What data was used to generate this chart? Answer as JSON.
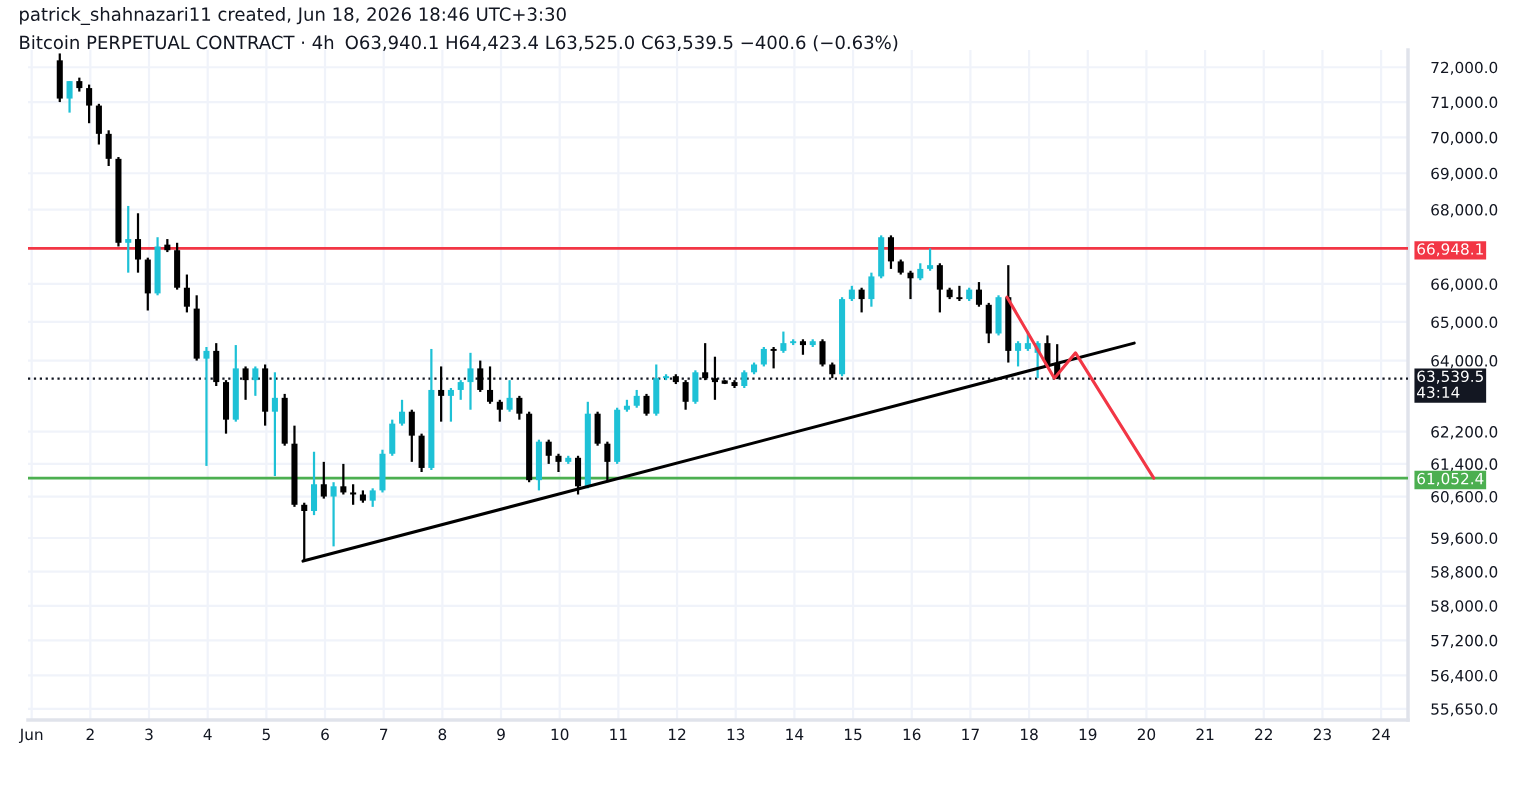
{
  "chart_data": {
    "type": "candlestick",
    "title": "Bitcoin PERPETUAL CONTRACT · 4h",
    "subtitle": "O63,940.1 H64,423.4 L63,525.0 C63,539.5 −400.6 (−0.63%)",
    "annotations": [
      "patrick_shahnazari11 created, Jun 18, 2026 18:46 UTC+3:30"
    ],
    "x": [
      "2026-06-01T11:30",
      "2026-06-01T15:30",
      "2026-06-01T19:30",
      "2026-06-01T23:30",
      "2026-06-02T03:30",
      "2026-06-02T07:30",
      "2026-06-02T11:30",
      "2026-06-02T15:30",
      "2026-06-02T19:30",
      "2026-06-02T23:30",
      "2026-06-03T03:30",
      "2026-06-03T07:30",
      "2026-06-03T11:30",
      "2026-06-03T15:30",
      "2026-06-03T19:30",
      "2026-06-03T23:30",
      "2026-06-04T03:30",
      "2026-06-04T07:30",
      "2026-06-04T11:30",
      "2026-06-04T15:30",
      "2026-06-04T19:30",
      "2026-06-04T23:30",
      "2026-06-05T03:30",
      "2026-06-05T07:30",
      "2026-06-05T11:30",
      "2026-06-05T15:30",
      "2026-06-05T19:30",
      "2026-06-05T23:30",
      "2026-06-06T03:30",
      "2026-06-06T07:30",
      "2026-06-06T11:30",
      "2026-06-06T15:30",
      "2026-06-06T19:30",
      "2026-06-06T23:30",
      "2026-06-07T03:30",
      "2026-06-07T07:30",
      "2026-06-07T11:30",
      "2026-06-07T15:30",
      "2026-06-07T19:30",
      "2026-06-07T23:30",
      "2026-06-08T03:30",
      "2026-06-08T07:30",
      "2026-06-08T11:30",
      "2026-06-08T15:30",
      "2026-06-08T19:30",
      "2026-06-08T23:30",
      "2026-06-09T03:30",
      "2026-06-09T07:30",
      "2026-06-09T11:30",
      "2026-06-09T15:30",
      "2026-06-09T19:30",
      "2026-06-09T23:30",
      "2026-06-10T03:30",
      "2026-06-10T07:30",
      "2026-06-10T11:30",
      "2026-06-10T15:30",
      "2026-06-10T19:30",
      "2026-06-10T23:30",
      "2026-06-11T03:30",
      "2026-06-11T07:30",
      "2026-06-11T11:30",
      "2026-06-11T15:30",
      "2026-06-11T19:30",
      "2026-06-11T23:30",
      "2026-06-12T03:30",
      "2026-06-12T07:30",
      "2026-06-12T11:30",
      "2026-06-12T15:30",
      "2026-06-12T19:30",
      "2026-06-12T23:30",
      "2026-06-13T03:30",
      "2026-06-13T07:30",
      "2026-06-13T11:30",
      "2026-06-13T15:30",
      "2026-06-13T19:30",
      "2026-06-13T23:30",
      "2026-06-14T03:30",
      "2026-06-14T07:30",
      "2026-06-14T11:30",
      "2026-06-14T15:30",
      "2026-06-14T19:30",
      "2026-06-14T23:30",
      "2026-06-15T03:30",
      "2026-06-15T07:30",
      "2026-06-15T11:30",
      "2026-06-15T15:30",
      "2026-06-15T19:30",
      "2026-06-15T23:30",
      "2026-06-16T03:30",
      "2026-06-16T07:30",
      "2026-06-16T11:30",
      "2026-06-16T15:30",
      "2026-06-16T19:30",
      "2026-06-16T23:30",
      "2026-06-17T03:30",
      "2026-06-17T07:30",
      "2026-06-17T11:30",
      "2026-06-17T15:30",
      "2026-06-17T19:30",
      "2026-06-17T23:30",
      "2026-06-18T03:30",
      "2026-06-18T07:30",
      "2026-06-18T11:30"
    ],
    "ohlc": [
      [
        72200,
        72400,
        71000,
        71100
      ],
      [
        71100,
        71600,
        70700,
        71600
      ],
      [
        71600,
        71700,
        71300,
        71400
      ],
      [
        71400,
        71500,
        70400,
        70900
      ],
      [
        70900,
        70950,
        69800,
        70100
      ],
      [
        70100,
        70200,
        69200,
        69400
      ],
      [
        69400,
        69450,
        67000,
        67100
      ],
      [
        67100,
        68100,
        66300,
        67200
      ],
      [
        67200,
        67900,
        66300,
        66650
      ],
      [
        66650,
        66700,
        65300,
        65750
      ],
      [
        65750,
        67250,
        65700,
        67000
      ],
      [
        67050,
        67200,
        66850,
        66900
      ],
      [
        66900,
        67100,
        65850,
        65900
      ],
      [
        65900,
        66250,
        65250,
        65400
      ],
      [
        65350,
        65700,
        64000,
        64050
      ],
      [
        64050,
        64350,
        61350,
        64250
      ],
      [
        64250,
        64450,
        63350,
        63450
      ],
      [
        63450,
        63500,
        62150,
        62500
      ],
      [
        62500,
        64400,
        62450,
        63800
      ],
      [
        63800,
        63850,
        63000,
        63500
      ],
      [
        63500,
        63850,
        63100,
        63800
      ],
      [
        63800,
        63900,
        62350,
        62700
      ],
      [
        62700,
        63700,
        61100,
        63050
      ],
      [
        63050,
        63150,
        61850,
        61900
      ],
      [
        61900,
        62350,
        60350,
        60400
      ],
      [
        60400,
        60450,
        59050,
        60250
      ],
      [
        60250,
        61700,
        60150,
        60900
      ],
      [
        60900,
        61450,
        60550,
        60600
      ],
      [
        60600,
        60950,
        59400,
        60850
      ],
      [
        60850,
        61400,
        60650,
        60700
      ],
      [
        60700,
        60900,
        60400,
        60650
      ],
      [
        60650,
        60750,
        60450,
        60500
      ],
      [
        60500,
        60800,
        60350,
        60750
      ],
      [
        60750,
        61750,
        60700,
        61650
      ],
      [
        61650,
        62500,
        61600,
        62400
      ],
      [
        62400,
        63000,
        62350,
        62700
      ],
      [
        62700,
        62750,
        61450,
        62100
      ],
      [
        62100,
        62150,
        61200,
        61300
      ],
      [
        61300,
        64300,
        61250,
        63250
      ],
      [
        63250,
        63850,
        62450,
        63100
      ],
      [
        63100,
        63300,
        62450,
        63250
      ],
      [
        63250,
        63500,
        63000,
        63450
      ],
      [
        63450,
        64200,
        62750,
        63800
      ],
      [
        63800,
        64000,
        63200,
        63250
      ],
      [
        63250,
        63850,
        62900,
        62950
      ],
      [
        62950,
        63000,
        62450,
        62750
      ],
      [
        62750,
        63500,
        62700,
        63050
      ],
      [
        63050,
        63100,
        62500,
        62650
      ],
      [
        62650,
        62700,
        60950,
        61000
      ],
      [
        61000,
        62000,
        60750,
        61950
      ],
      [
        61950,
        62000,
        61400,
        61600
      ],
      [
        61600,
        61650,
        61200,
        61450
      ],
      [
        61450,
        61600,
        61400,
        61550
      ],
      [
        61550,
        61600,
        60650,
        60850
      ],
      [
        60850,
        62950,
        60800,
        62650
      ],
      [
        62650,
        62700,
        61850,
        61900
      ],
      [
        61900,
        61950,
        60950,
        61450
      ],
      [
        61450,
        62800,
        61400,
        62750
      ],
      [
        62750,
        63000,
        62700,
        62850
      ],
      [
        62850,
        63250,
        62800,
        63100
      ],
      [
        63100,
        63150,
        62600,
        62650
      ],
      [
        62650,
        63900,
        62600,
        63550
      ],
      [
        63550,
        63650,
        63500,
        63600
      ],
      [
        63600,
        63650,
        63400,
        63450
      ],
      [
        63450,
        63500,
        62750,
        62950
      ],
      [
        62950,
        63750,
        62900,
        63700
      ],
      [
        63700,
        64450,
        63500,
        63550
      ],
      [
        63550,
        64100,
        63000,
        63450
      ],
      [
        63450,
        63500,
        63400,
        63450
      ],
      [
        63450,
        63500,
        63300,
        63350
      ],
      [
        63350,
        63750,
        63300,
        63700
      ],
      [
        63700,
        63950,
        63650,
        63900
      ],
      [
        63900,
        64350,
        63850,
        64300
      ],
      [
        64300,
        64350,
        63800,
        64250
      ],
      [
        64250,
        64750,
        64200,
        64450
      ],
      [
        64450,
        64550,
        64400,
        64500
      ],
      [
        64500,
        64550,
        64150,
        64400
      ],
      [
        64400,
        64550,
        64350,
        64500
      ],
      [
        64500,
        64550,
        63850,
        63900
      ],
      [
        63900,
        63950,
        63550,
        63650
      ],
      [
        63650,
        65650,
        63600,
        65600
      ],
      [
        65600,
        65950,
        65550,
        65850
      ],
      [
        65850,
        65900,
        65250,
        65600
      ],
      [
        65600,
        66300,
        65400,
        66200
      ],
      [
        66200,
        67300,
        66150,
        67250
      ],
      [
        67250,
        67300,
        66400,
        66600
      ],
      [
        66600,
        66650,
        66250,
        66300
      ],
      [
        66300,
        66350,
        65600,
        66150
      ],
      [
        66150,
        66550,
        66100,
        66400
      ],
      [
        66400,
        66950,
        66350,
        66500
      ],
      [
        66500,
        66550,
        65250,
        65850
      ],
      [
        65850,
        65900,
        65600,
        65650
      ],
      [
        65650,
        65950,
        65550,
        65600
      ],
      [
        65600,
        65900,
        65550,
        65850
      ],
      [
        65850,
        66050,
        65400,
        65450
      ],
      [
        65450,
        65500,
        64450,
        64700
      ],
      [
        64700,
        65700,
        64650,
        65650
      ],
      [
        65650,
        66500,
        63950,
        64250
      ],
      [
        64250,
        64500,
        63850,
        64450
      ],
      [
        64300,
        64750,
        64250,
        64450
      ],
      [
        64200,
        64500,
        63550,
        64450
      ],
      [
        64450,
        64650,
        63850,
        63900
      ],
      [
        63940.1,
        64423.4,
        63525.0,
        63539.5
      ]
    ],
    "colors": [
      "#000000",
      "#1ec1d6",
      "#000000",
      "#000000",
      "#000000",
      "#000000",
      "#000000",
      "#1ec1d6",
      "#000000",
      "#000000",
      "#1ec1d6",
      "#000000",
      "#000000",
      "#000000",
      "#000000",
      "#1ec1d6",
      "#000000",
      "#000000",
      "#1ec1d6",
      "#000000",
      "#1ec1d6",
      "#000000",
      "#1ec1d6",
      "#000000",
      "#000000",
      "#000000",
      "#1ec1d6",
      "#000000",
      "#1ec1d6",
      "#000000",
      "#000000",
      "#000000",
      "#1ec1d6",
      "#1ec1d6",
      "#1ec1d6",
      "#1ec1d6",
      "#000000",
      "#000000",
      "#1ec1d6",
      "#000000",
      "#1ec1d6",
      "#1ec1d6",
      "#1ec1d6",
      "#000000",
      "#000000",
      "#000000",
      "#1ec1d6",
      "#000000",
      "#000000",
      "#1ec1d6",
      "#000000",
      "#000000",
      "#1ec1d6",
      "#000000",
      "#1ec1d6",
      "#000000",
      "#000000",
      "#1ec1d6",
      "#1ec1d6",
      "#1ec1d6",
      "#000000",
      "#1ec1d6",
      "#1ec1d6",
      "#000000",
      "#000000",
      "#1ec1d6",
      "#000000",
      "#000000",
      "#000000",
      "#000000",
      "#1ec1d6",
      "#1ec1d6",
      "#1ec1d6",
      "#000000",
      "#1ec1d6",
      "#1ec1d6",
      "#000000",
      "#1ec1d6",
      "#000000",
      "#000000",
      "#1ec1d6",
      "#1ec1d6",
      "#000000",
      "#1ec1d6",
      "#1ec1d6",
      "#000000",
      "#000000",
      "#000000",
      "#1ec1d6",
      "#1ec1d6",
      "#000000",
      "#000000",
      "#000000",
      "#1ec1d6",
      "#000000",
      "#000000",
      "#1ec1d6",
      "#000000",
      "#1ec1d6",
      "#1ec1d6",
      "#1ec1d6",
      "#000000",
      "#000000"
    ],
    "series": [
      {
        "type": "line",
        "color": "#000000",
        "x": [
          "2026-06-05T15:00",
          "2026-06-19T19:00"
        ],
        "values": [
          59050,
          64450
        ]
      },
      {
        "type": "line",
        "color": "#f23645",
        "x": [
          "2026-06-17T15:00",
          "2026-06-18T10:20",
          "2026-06-18T19:00",
          "2026-06-20T03:00"
        ],
        "values": [
          65650,
          63550,
          64200,
          61050
        ]
      }
    ],
    "ref_lines": [
      {
        "axis": "y",
        "value": 66948.1,
        "label": "66,948.1",
        "color": "#f23645",
        "line_style": "solid"
      },
      {
        "axis": "y",
        "value": 61052.4,
        "label": "61,052.4",
        "color": "#4caf50",
        "line_style": "solid"
      },
      {
        "axis": "y",
        "value": 63539.5,
        "label": "63,539.5\n43:14",
        "color": "#131722",
        "line_style": "dotted"
      }
    ],
    "log": true,
    "xlim": [
      "2026-05-31T22:30",
      "2026-06-24T11:00"
    ],
    "xticks": [
      {
        "value": "2026-06-01",
        "label": "Jun"
      },
      {
        "value": "2026-06-02",
        "label": "2"
      },
      {
        "value": "2026-06-03",
        "label": "3"
      },
      {
        "value": "2026-06-04",
        "label": "4"
      },
      {
        "value": "2026-06-05",
        "label": "5"
      },
      {
        "value": "2026-06-06",
        "label": "6"
      },
      {
        "value": "2026-06-07",
        "label": "7"
      },
      {
        "value": "2026-06-08",
        "label": "8"
      },
      {
        "value": "2026-06-09",
        "label": "9"
      },
      {
        "value": "2026-06-10",
        "label": "10"
      },
      {
        "value": "2026-06-11",
        "label": "11"
      },
      {
        "value": "2026-06-12",
        "label": "12"
      },
      {
        "value": "2026-06-13",
        "label": "13"
      },
      {
        "value": "2026-06-14",
        "label": "14"
      },
      {
        "value": "2026-06-15",
        "label": "15"
      },
      {
        "value": "2026-06-16",
        "label": "16"
      },
      {
        "value": "2026-06-17",
        "label": "17"
      },
      {
        "value": "2026-06-18",
        "label": "18"
      },
      {
        "value": "2026-06-19",
        "label": "19"
      },
      {
        "value": "2026-06-20",
        "label": "20"
      },
      {
        "value": "2026-06-21",
        "label": "21"
      },
      {
        "value": "2026-06-22",
        "label": "22"
      },
      {
        "value": "2026-06-23",
        "label": "23"
      },
      {
        "value": "2026-06-24",
        "label": "24"
      }
    ],
    "ylim": [
      55400,
      72500
    ],
    "yticks": [
      {
        "value": 72000,
        "label": "72,000.0"
      },
      {
        "value": 71000,
        "label": "71,000.0"
      },
      {
        "value": 70000,
        "label": "70,000.0"
      },
      {
        "value": 69000,
        "label": "69,000.0"
      },
      {
        "value": 68000,
        "label": "68,000.0"
      },
      {
        "value": 66000,
        "label": "66,000.0"
      },
      {
        "value": 65000,
        "label": "65,000.0"
      },
      {
        "value": 64000,
        "label": "64,000.0"
      },
      {
        "value": 62200,
        "label": "62,200.0"
      },
      {
        "value": 61400,
        "label": "61,400.0"
      },
      {
        "value": 60600,
        "label": "60,600.0"
      },
      {
        "value": 59600,
        "label": "59,600.0"
      },
      {
        "value": 58800,
        "label": "58,800.0"
      },
      {
        "value": 58000,
        "label": "58,000.0"
      },
      {
        "value": 57200,
        "label": "57,200.0"
      },
      {
        "value": 56400,
        "label": "56,400.0"
      },
      {
        "value": 55650,
        "label": "55,650.0"
      }
    ],
    "grid": true
  }
}
